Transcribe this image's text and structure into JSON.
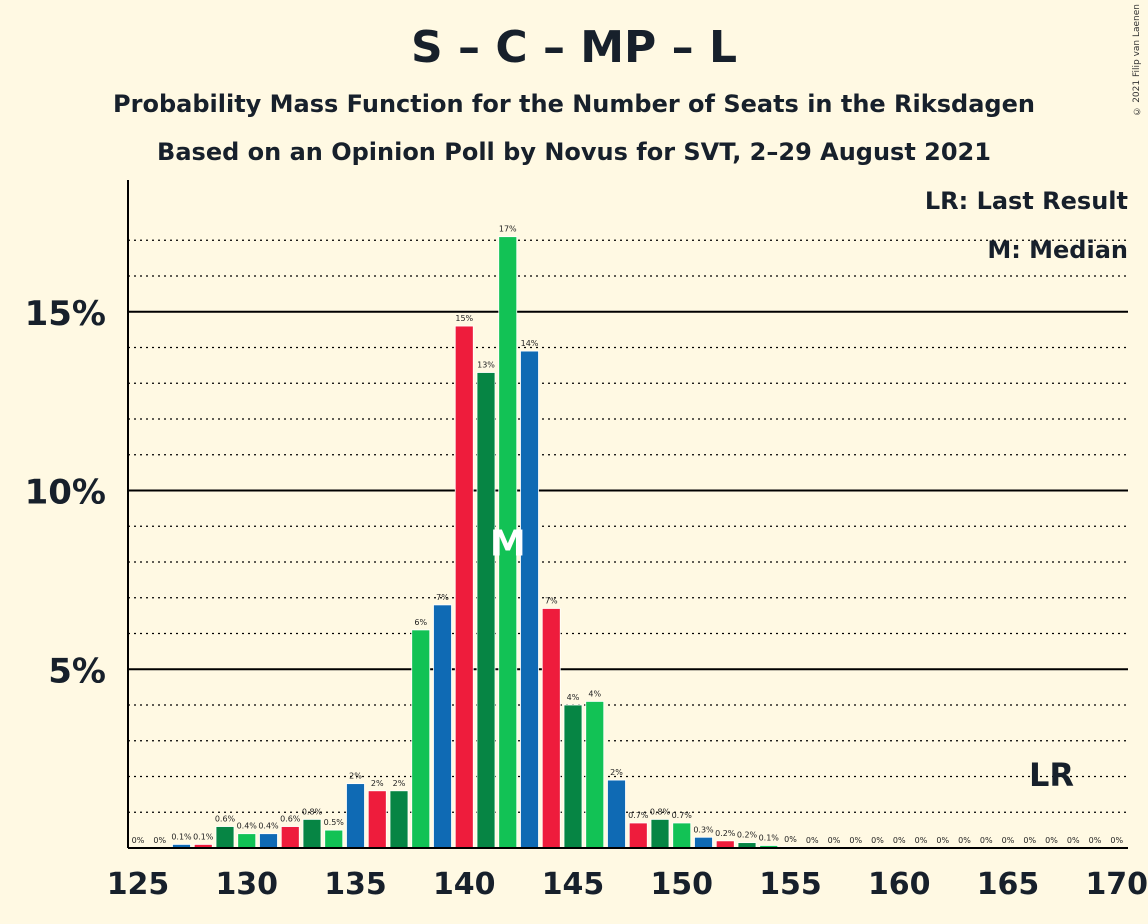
{
  "title": "S – C – MP – L",
  "subtitle": "Probability Mass Function for the Number of Seats in the Riksdagen",
  "subtitle2": "Based on an Opinion Poll by Novus for SVT, 2–29 August 2021",
  "copyright": "© 2021 Filip van Laenen",
  "legend": {
    "last_result": "LR: Last Result",
    "median": "M: Median"
  },
  "markers": {
    "median_label": "M",
    "median_seat": 142,
    "last_result_label": "LR",
    "last_result_seat": 167
  },
  "colors": {
    "S": "#EE1C3C",
    "C": "#068544",
    "MP": "#12C255",
    "L": "#0F6AB4",
    "background": "#FFF9E3"
  },
  "chart_data": {
    "type": "bar",
    "title": "S – C – MP – L",
    "xlim": [
      125,
      170
    ],
    "ylim": [
      0,
      18
    ],
    "x_ticks": [
      "125",
      "130",
      "135",
      "140",
      "145",
      "150",
      "155",
      "160",
      "165",
      "170"
    ],
    "y_ticks": [
      {
        "value": 5,
        "label": "5%"
      },
      {
        "value": 10,
        "label": "10%"
      },
      {
        "value": 15,
        "label": "15%"
      }
    ],
    "grid": "dotted every 1%, solid every 5%",
    "series": [
      {
        "seats": [
          125,
          126,
          127,
          128,
          129,
          130,
          131,
          132,
          133,
          134,
          135,
          136,
          137,
          138,
          139,
          140,
          141,
          142,
          143,
          144,
          145,
          146,
          147,
          148,
          149,
          150,
          151,
          152,
          153,
          154,
          155,
          156,
          157,
          158,
          159,
          160,
          161,
          162,
          163,
          164,
          165,
          166,
          167,
          168,
          169,
          170
        ],
        "values": [
          0,
          0,
          0.1,
          0.1,
          0.6,
          0.4,
          0.4,
          0.6,
          0.8,
          0.5,
          1.8,
          1.6,
          1.6,
          6.1,
          6.8,
          14.6,
          13.3,
          17.1,
          13.9,
          6.7,
          4.0,
          4.1,
          1.9,
          0.7,
          0.8,
          0.7,
          0.3,
          0.2,
          0.15,
          0.07,
          0.03,
          0,
          0,
          0,
          0,
          0,
          0,
          0,
          0,
          0,
          0,
          0,
          0,
          0,
          0,
          0
        ],
        "labels": [
          "0%",
          "0%",
          "0.1%",
          "0.1%",
          "0.6%",
          "0.4%",
          "0.4%",
          "0.6%",
          "0.8%",
          "0.5%",
          "2%",
          "2%",
          "2%",
          "6%",
          "7%",
          "15%",
          "13%",
          "17%",
          "14%",
          "7%",
          "4%",
          "4%",
          "2%",
          "0.7%",
          "0.8%",
          "0.7%",
          "0.3%",
          "0.2%",
          "0.2%",
          "0.1%",
          "0%",
          "0%",
          "0%",
          "0%",
          "0%",
          "0%",
          "0%",
          "0%",
          "0%",
          "0%",
          "0%",
          "0%",
          "0%",
          "0%",
          "0%",
          "0%"
        ]
      }
    ]
  }
}
